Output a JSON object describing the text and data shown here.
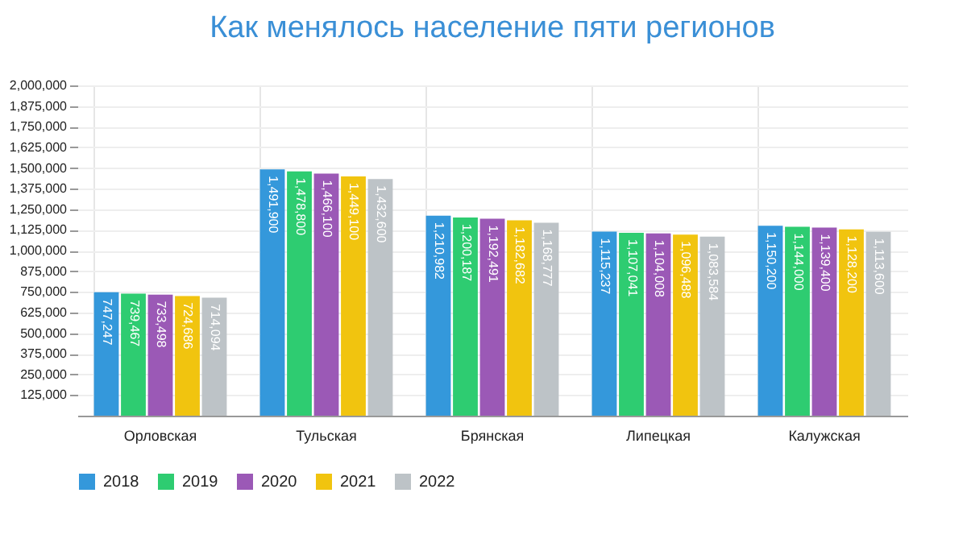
{
  "chart_data": {
    "type": "bar",
    "title": "Как менялось население пяти регионов",
    "categories": [
      "Орловская",
      "Тульская",
      "Брянская",
      "Липецкая",
      "Калужская"
    ],
    "series": [
      {
        "name": "2018",
        "color": "#3498db",
        "values": [
          747247,
          1491900,
          1210982,
          1115237,
          1150200
        ],
        "value_labels": [
          "747,247",
          "1,491,900",
          "1,210,982",
          "1,115,237",
          "1,150,200"
        ]
      },
      {
        "name": "2019",
        "color": "#2ecc71",
        "values": [
          739467,
          1478800,
          1200187,
          1107041,
          1144000
        ],
        "value_labels": [
          "739,467",
          "1,478,800",
          "1,200,187",
          "1,107,041",
          "1,144,000"
        ]
      },
      {
        "name": "2020",
        "color": "#9b59b6",
        "values": [
          733498,
          1466100,
          1192491,
          1104008,
          1139400
        ],
        "value_labels": [
          "733,498",
          "1,466,100",
          "1,192,491",
          "1,104,008",
          "1,139,400"
        ]
      },
      {
        "name": "2021",
        "color": "#f1c40f",
        "values": [
          724686,
          1449100,
          1182682,
          1096488,
          1128200
        ],
        "value_labels": [
          "724,686",
          "1,449,100",
          "1,182,682",
          "1,096,488",
          "1,128,200"
        ]
      },
      {
        "name": "2022",
        "color": "#bdc3c7",
        "values": [
          714094,
          1432600,
          1168777,
          1083584,
          1113600
        ],
        "value_labels": [
          "714,094",
          "1,432,600",
          "1,168,777",
          "1,083,584",
          "1,113,600"
        ]
      }
    ],
    "ylim": [
      0,
      2000000
    ],
    "yticks": [
      {
        "value": 125000,
        "label": "125,000"
      },
      {
        "value": 250000,
        "label": "250,000"
      },
      {
        "value": 375000,
        "label": "375,000"
      },
      {
        "value": 500000,
        "label": "500,000"
      },
      {
        "value": 625000,
        "label": "625,000"
      },
      {
        "value": 750000,
        "label": "750,000"
      },
      {
        "value": 875000,
        "label": "875,000"
      },
      {
        "value": 1000000,
        "label": "1,000,000"
      },
      {
        "value": 1125000,
        "label": "1,125,000"
      },
      {
        "value": 1250000,
        "label": "1,250,000"
      },
      {
        "value": 1375000,
        "label": "1,375,000"
      },
      {
        "value": 1500000,
        "label": "1,500,000"
      },
      {
        "value": 1625000,
        "label": "1,625,000"
      },
      {
        "value": 1750000,
        "label": "1,750,000"
      },
      {
        "value": 1875000,
        "label": "1,875,000"
      },
      {
        "value": 2000000,
        "label": "2,000,000"
      }
    ],
    "grid": true,
    "legend": "bottom"
  }
}
